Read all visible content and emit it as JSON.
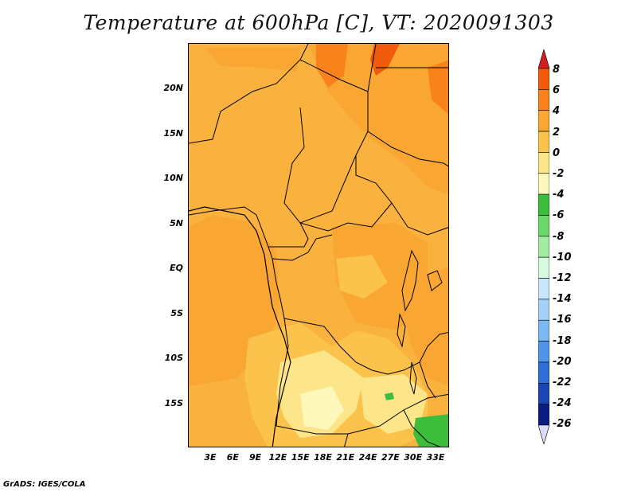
{
  "title": "Temperature at 600hPa [C], VT: 2020091303",
  "credit": "GrADS: IGES/COLA",
  "map": {
    "lat_labels": [
      "20N",
      "15N",
      "10N",
      "5N",
      "EQ",
      "5S",
      "10S",
      "15S"
    ],
    "lon_labels": [
      "3E",
      "6E",
      "9E",
      "12E",
      "15E",
      "18E",
      "21E",
      "24E",
      "27E",
      "30E",
      "33E"
    ],
    "lat_range": [
      -20,
      25
    ],
    "lon_range": [
      0,
      35
    ]
  },
  "colorbar": {
    "labels": [
      "8",
      "6",
      "4",
      "2",
      "0",
      "-2",
      "-4",
      "-6",
      "-8",
      "-10",
      "-12",
      "-14",
      "-16",
      "-18",
      "-20",
      "-22",
      "-24",
      "-26"
    ],
    "colors": [
      "#e02b10",
      "#f05c0c",
      "#f9821c",
      "#f9a633",
      "#fbc24c",
      "#fde58a",
      "#fff8bd",
      "#3cbd3c",
      "#6bd86b",
      "#a2eba2",
      "#d8fadc",
      "#c7e6fd",
      "#a5d1f8",
      "#7cb8f3",
      "#4f96ea",
      "#2e6fd6",
      "#1a45b4",
      "#0c1c82",
      "#d5d5f5"
    ],
    "top_cap": "#d41e1e",
    "bottom_cap": "#dcdcf8"
  }
}
